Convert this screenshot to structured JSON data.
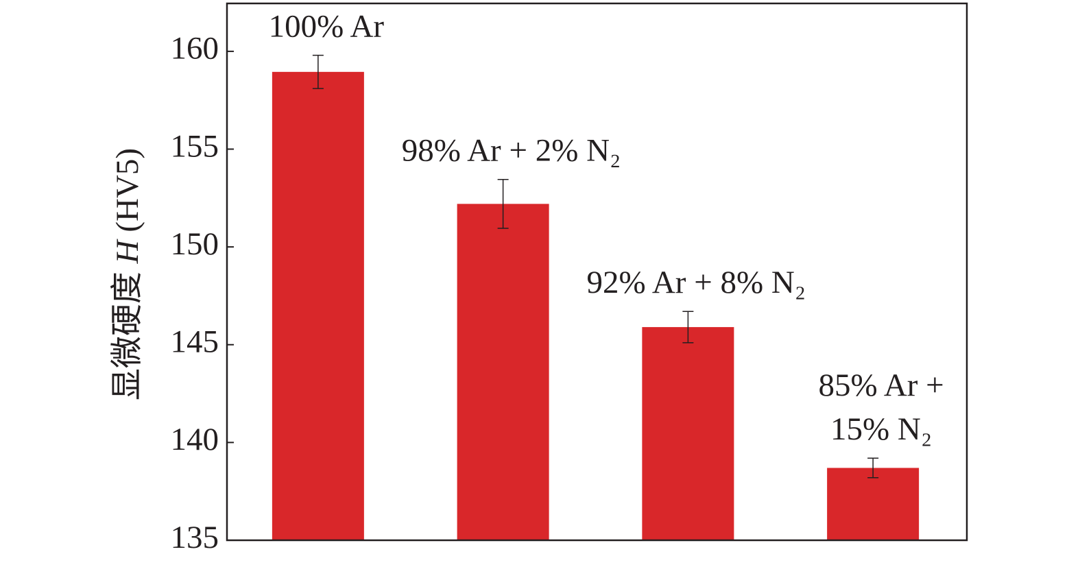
{
  "chart_data": {
    "type": "bar",
    "ylabel": [
      "显微硬度 ",
      "H",
      " (HV5)"
    ],
    "categories": [
      null,
      null,
      null,
      null
    ],
    "values": [
      158.95,
      152.2,
      145.9,
      138.7
    ],
    "errors": [
      0.85,
      1.25,
      0.8,
      0.5
    ],
    "bar_labels": [
      [
        "100% Ar"
      ],
      [
        "98% Ar + 2% N₂"
      ],
      [
        "92% Ar + 8% N₂"
      ],
      [
        "85% Ar +",
        "15% N₂"
      ]
    ],
    "color": "#d9272a",
    "ylim": [
      135,
      162.45
    ],
    "yticks": [
      135,
      140,
      145,
      150,
      155,
      160
    ],
    "grid": false
  }
}
